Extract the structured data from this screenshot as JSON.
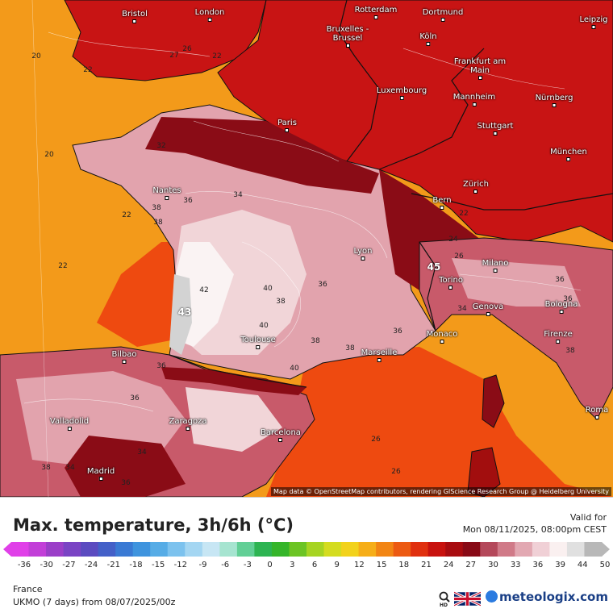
{
  "map": {
    "colors": {
      "sea_cool": "#f39a1a",
      "sea_warm": "#ee4a10",
      "land_28": "#c81414",
      "land_32": "#a20e0e",
      "land_34": "#8a0c16",
      "land_36": "#c85a6a",
      "land_38": "#e2a3ad",
      "land_40": "#f1d5d8",
      "land_42": "#faf3f3",
      "land_44": "#d3d3d3",
      "border": "#111111",
      "contour": "#ffffff"
    },
    "cities": [
      {
        "name": "Bristol"
      },
      {
        "name": "London"
      },
      {
        "name": "Rotterdam"
      },
      {
        "name": "Dortmund"
      },
      {
        "name": "Leipzig"
      },
      {
        "name": "Bruxelles - Brussel"
      },
      {
        "name": "Köln"
      },
      {
        "name": "Frankfurt am Main"
      },
      {
        "name": "Luxembourg"
      },
      {
        "name": "Mannheim"
      },
      {
        "name": "Nürnberg"
      },
      {
        "name": "Paris"
      },
      {
        "name": "Stuttgart"
      },
      {
        "name": "München"
      },
      {
        "name": "Nantes"
      },
      {
        "name": "Zürich"
      },
      {
        "name": "Bern"
      },
      {
        "name": "Lyon"
      },
      {
        "name": "Milano"
      },
      {
        "name": "Torino"
      },
      {
        "name": "Genova"
      },
      {
        "name": "Bologna"
      },
      {
        "name": "Toulouse"
      },
      {
        "name": "Monaco"
      },
      {
        "name": "Marseille"
      },
      {
        "name": "Firenze"
      },
      {
        "name": "Bilbao"
      },
      {
        "name": "Valladolid"
      },
      {
        "name": "Zaragoza"
      },
      {
        "name": "Barcelona"
      },
      {
        "name": "Roma"
      },
      {
        "name": "Madrid"
      }
    ],
    "isotherm_labels": [
      "20",
      "22",
      "27",
      "26",
      "22",
      "32",
      "20",
      "38",
      "36",
      "22",
      "34",
      "38",
      "22",
      "42",
      "43",
      "40",
      "38",
      "36",
      "40",
      "38",
      "36",
      "38",
      "35",
      "34",
      "36",
      "36",
      "38",
      "40",
      "34",
      "36",
      "26",
      "26",
      "36",
      "38",
      "34",
      "36",
      "45",
      "22",
      "24",
      "26"
    ],
    "attribution": "Map data © OpenStreetMap contributors, rendering GIScience Research Group @ Heidelberg University"
  },
  "legend": {
    "title": "Max. temperature, 3h/6h (°C)",
    "valid_label": "Valid for",
    "valid_date": "Mon 08/11/2025, 08:00pm CEST",
    "ticks": [
      "-36",
      "-30",
      "-27",
      "-24",
      "-21",
      "-18",
      "-15",
      "-12",
      "-9",
      "-6",
      "-3",
      "0",
      "3",
      "6",
      "9",
      "12",
      "15",
      "18",
      "21",
      "24",
      "27",
      "30",
      "33",
      "36",
      "39",
      "44",
      "50"
    ],
    "scale_colors": [
      "#e040e8",
      "#c23fd8",
      "#9b3fc8",
      "#7a44c4",
      "#5b4bc0",
      "#4460c8",
      "#3a7ad4",
      "#3f94de",
      "#56ace6",
      "#7cc2ee",
      "#a4d6f2",
      "#c7e6f4",
      "#a6e4d0",
      "#62cf96",
      "#2db452",
      "#35b52a",
      "#6cc424",
      "#a6d422",
      "#d4dc20",
      "#f2d21c",
      "#f6ae18",
      "#f28514",
      "#ec5a12",
      "#e0300f",
      "#c8120e",
      "#a80c10",
      "#880a16",
      "#b4485a",
      "#d07a88",
      "#e2a8b2",
      "#f0d0d6",
      "#faf0f0",
      "#e0e0e0",
      "#b8b8b8"
    ],
    "region": "France",
    "model": "UKMO (7 days) from 08/07/2025/00z",
    "brand": "meteologix.com",
    "hd_icon": "magnifier-hd-icon",
    "flag_icon": "uk-flag-icon"
  }
}
